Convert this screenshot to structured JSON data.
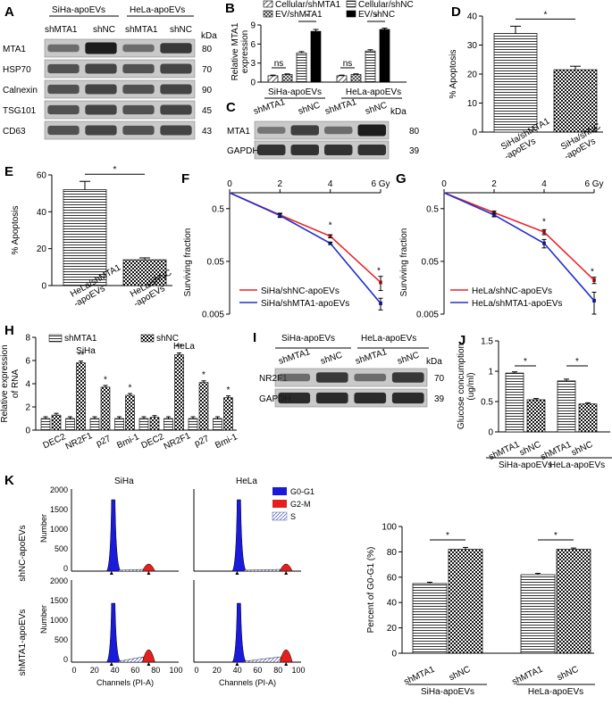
{
  "panel_labels": [
    "A",
    "B",
    "C",
    "D",
    "E",
    "F",
    "G",
    "H",
    "I",
    "J",
    "K"
  ],
  "A": {
    "groups": [
      "SiHa-apoEVs",
      "HeLa-apoEVs"
    ],
    "lanes": [
      "shMTA1",
      "shNC",
      "shMTA1",
      "shNC"
    ],
    "kda_label": "kDa",
    "bands": [
      {
        "name": "MTA1",
        "kda": "80"
      },
      {
        "name": "HSP70",
        "kda": "70"
      },
      {
        "name": "Calnexin",
        "kda": "90"
      },
      {
        "name": "TSG101",
        "kda": "45"
      },
      {
        "name": "CD63",
        "kda": "43"
      }
    ]
  },
  "C": {
    "lanes": [
      "shMTA1",
      "shNC",
      "shMTA1",
      "shNC"
    ],
    "kda_label": "kDa",
    "bands": [
      {
        "name": "MTA1",
        "kda": "80"
      },
      {
        "name": "GAPDH",
        "kda": "39"
      }
    ]
  },
  "I": {
    "groups": [
      "SiHa-apoEVs",
      "HeLa-apoEVs"
    ],
    "lanes": [
      "shMTA1",
      "shNC",
      "shMTA1",
      "shNC"
    ],
    "kda_label": "kDa",
    "bands": [
      {
        "name": "NR2F1",
        "kda": "70"
      },
      {
        "name": "GAPDH",
        "kda": "39"
      }
    ]
  },
  "K": {
    "col_titles": [
      "SiHa",
      "HeLa"
    ],
    "row_labels": [
      "shNC-apoEVs",
      "shMTA1-apoEVs"
    ],
    "legend": [
      "G0-G1",
      "G2-M",
      "S"
    ],
    "yticks": [
      "2000",
      "1500",
      "1000",
      "500",
      "0"
    ],
    "xticks": [
      "0",
      "20",
      "40",
      "60",
      "80",
      "100"
    ],
    "ylabel": "Number",
    "xlabel": "Channels (PI-A)"
  },
  "colors": {
    "red": "#e8262b",
    "blue": "#2330c9",
    "g0g1": "#1a1adb",
    "g2m": "#e4201f",
    "s": "#7777cc"
  },
  "chart_data": [
    {
      "id": "B",
      "type": "bar",
      "ylabel": "Relative MTA1 expression",
      "ylim": [
        0,
        9
      ],
      "yticks": [
        0,
        3,
        6,
        9
      ],
      "legend": [
        "Cellular/shMTA1",
        "EV/shMTA1",
        "Cellular/shNC",
        "EV/shNC"
      ],
      "groups": [
        "SiHa-apoEVs",
        "HeLa-apoEVs"
      ],
      "values": [
        [
          1.0,
          1.2,
          4.6,
          8.0
        ],
        [
          1.0,
          1.2,
          4.9,
          8.3
        ]
      ],
      "errors": [
        [
          0.1,
          0.1,
          0.2,
          0.3
        ],
        [
          0.1,
          0.1,
          0.2,
          0.2
        ]
      ],
      "annotations": [
        "ns",
        "*",
        "ns",
        "*"
      ]
    },
    {
      "id": "D",
      "type": "bar",
      "ylabel": "% Apoptosis",
      "ylim": [
        0,
        40
      ],
      "yticks": [
        0,
        10,
        20,
        30,
        40
      ],
      "categories": [
        "SiHa/shMTA1\n-apoEVs",
        "SiHa/shNC\n-apoEVs"
      ],
      "values": [
        34,
        21.5
      ],
      "errors": [
        2.5,
        1.2
      ],
      "annotation": "*"
    },
    {
      "id": "E",
      "type": "bar",
      "ylabel": "% Apoptosis",
      "ylim": [
        0,
        60
      ],
      "yticks": [
        0,
        20,
        40,
        60
      ],
      "categories": [
        "HeLa/shMTA1\n-apoEVs",
        "HeLa/shNC\n-apoEVs"
      ],
      "values": [
        52,
        14
      ],
      "errors": [
        4.5,
        1.0
      ],
      "annotation": "*"
    },
    {
      "id": "F",
      "type": "line",
      "ylabel": "Surviving fraction",
      "xlabel": "",
      "x": [
        0,
        2,
        4,
        6
      ],
      "xtick_labels": [
        "0",
        "2",
        "4",
        "6 Gy"
      ],
      "yscale": "log",
      "ylim": [
        0.005,
        1
      ],
      "ytick_labels": [
        "0.5",
        "0.05",
        "0.005"
      ],
      "series": [
        {
          "name": "SiHa/shNC-apoEVs",
          "color": "red",
          "values": [
            1,
            0.38,
            0.15,
            0.02
          ],
          "errors": [
            0,
            0.03,
            0.01,
            0.006
          ]
        },
        {
          "name": "SiHa/shMTA1-apoEVs",
          "color": "blue",
          "values": [
            1,
            0.37,
            0.11,
            0.008
          ],
          "errors": [
            0,
            0.03,
            0.005,
            0.002
          ]
        }
      ],
      "annotations": [
        "*",
        "*"
      ]
    },
    {
      "id": "G",
      "type": "line",
      "ylabel": "Surviving fraction",
      "x": [
        0,
        2,
        4,
        6
      ],
      "xtick_labels": [
        "0",
        "2",
        "4",
        "6 Gy"
      ],
      "yscale": "log",
      "ylim": [
        0.005,
        1
      ],
      "ytick_labels": [
        "0.5",
        "0.05",
        "0.005"
      ],
      "series": [
        {
          "name": "HeLa/shNC-apoEVs",
          "color": "red",
          "values": [
            1,
            0.42,
            0.18,
            0.022
          ],
          "errors": [
            0,
            0.03,
            0.02,
            0.003
          ]
        },
        {
          "name": "HeLa/shMTA1-apoEVs",
          "color": "blue",
          "values": [
            1,
            0.38,
            0.11,
            0.009
          ],
          "errors": [
            0,
            0.03,
            0.02,
            0.004
          ]
        }
      ],
      "annotations": [
        "*",
        "*"
      ]
    },
    {
      "id": "H",
      "type": "bar",
      "ylabel": "Relative expression of RNA",
      "ylim": [
        0,
        8
      ],
      "yticks": [
        0,
        2,
        4,
        6,
        8
      ],
      "legend": [
        "shMTA1",
        "shNC"
      ],
      "group_titles": [
        "SiHa",
        "HeLa"
      ],
      "categories": [
        "DEC2",
        "NR2F1",
        "p27",
        "Bmi-1",
        "DEC2",
        "NR2F1",
        "p27",
        "Bmi-1"
      ],
      "series": [
        {
          "name": "shMTA1",
          "values": [
            1,
            1,
            1,
            1,
            1,
            1,
            1,
            1
          ]
        },
        {
          "name": "shNC",
          "values": [
            1.3,
            5.8,
            3.7,
            3.0,
            1.1,
            6.5,
            4.1,
            2.8
          ]
        }
      ],
      "annotations": [
        "",
        "**",
        "*",
        "*",
        "",
        "**",
        "*",
        "*"
      ]
    },
    {
      "id": "J",
      "type": "bar",
      "ylabel": "Glucose concumption (ug/ml)",
      "ylim": [
        0,
        1.5
      ],
      "yticks": [
        0.0,
        0.5,
        1.0,
        1.5
      ],
      "categories": [
        "shMTA1",
        "shNC",
        "shMTA1",
        "shNC"
      ],
      "groups": [
        "SiHa-apoEVs",
        "HeLa-apoEVs"
      ],
      "values": [
        0.97,
        0.53,
        0.84,
        0.46
      ],
      "errors": [
        0.02,
        0.02,
        0.03,
        0.02
      ],
      "annotations": [
        "*",
        "*"
      ]
    },
    {
      "id": "K2",
      "type": "bar",
      "ylabel": "Percent of G0-G1 (%)",
      "ylim": [
        0,
        100
      ],
      "yticks": [
        0,
        20,
        40,
        60,
        80,
        100
      ],
      "categories": [
        "shMTA1",
        "shNC",
        "shMTA1",
        "shNC"
      ],
      "groups": [
        "SiHa-apoEVs",
        "HeLa-apoEVs"
      ],
      "values": [
        55,
        82,
        62,
        82
      ],
      "errors": [
        1,
        1.5,
        1,
        1
      ],
      "annotations": [
        "*",
        "*"
      ]
    }
  ]
}
